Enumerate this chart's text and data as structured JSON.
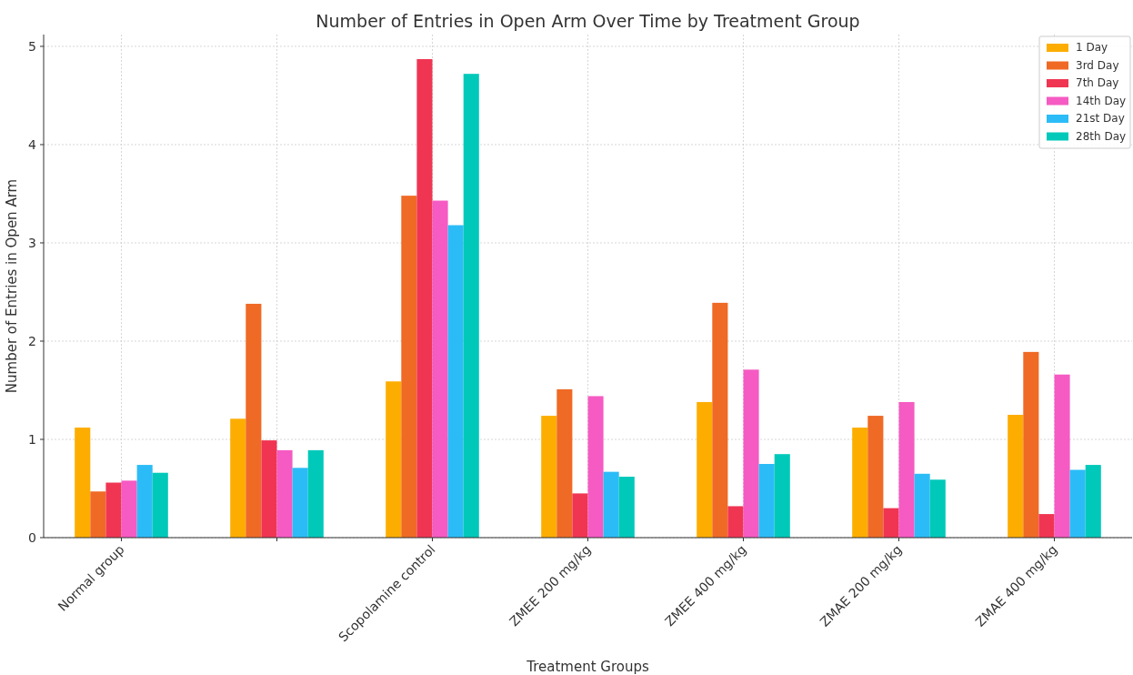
{
  "chart_data": {
    "type": "bar",
    "title": "Number of Entries in Open Arm Over Time by Treatment Group",
    "xlabel": "Treatment Groups",
    "ylabel": "Number of Entries in Open Arm",
    "categories": [
      "Normal group",
      null,
      "Scopolamine control",
      "ZMEE 200 mg/kg",
      "ZMEE 400 mg/kg",
      "ZMAE 200 mg/kg",
      "ZMAE 400 mg/kg"
    ],
    "series": [
      {
        "name": "1 Day",
        "color": "#fdad00",
        "values": [
          1.12,
          1.21,
          1.59,
          1.24,
          1.38,
          1.12,
          1.25
        ]
      },
      {
        "name": "3rd Day",
        "color": "#ef6a25",
        "values": [
          0.47,
          2.38,
          3.48,
          1.51,
          2.39,
          1.24,
          1.89
        ]
      },
      {
        "name": "7th Day",
        "color": "#f03552",
        "values": [
          0.56,
          0.99,
          4.87,
          0.45,
          0.32,
          0.3,
          0.24
        ]
      },
      {
        "name": "14th Day",
        "color": "#f55bc2",
        "values": [
          0.58,
          0.89,
          3.43,
          1.44,
          1.71,
          1.38,
          1.66
        ]
      },
      {
        "name": "21st Day",
        "color": "#2bbcf7",
        "values": [
          0.74,
          0.71,
          3.18,
          0.67,
          0.75,
          0.65,
          0.69
        ]
      },
      {
        "name": "28th Day",
        "color": "#00c9b9",
        "values": [
          0.66,
          0.89,
          4.72,
          0.62,
          0.85,
          0.59,
          0.74
        ]
      }
    ],
    "ylim": [
      0,
      5.12
    ],
    "yticks": [
      0,
      1,
      2,
      3,
      4,
      5
    ],
    "grid": true,
    "legend": "top right"
  }
}
